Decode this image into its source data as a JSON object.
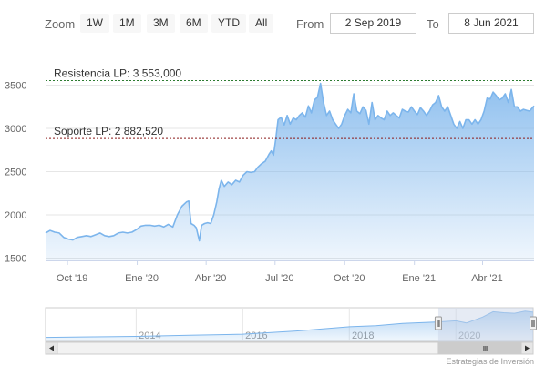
{
  "range_selector": {
    "zoom_label": "Zoom",
    "buttons": [
      "1W",
      "1M",
      "3M",
      "6M",
      "YTD",
      "All"
    ],
    "from_label": "From",
    "from_value": "2 Sep 2019",
    "to_label": "To",
    "to_value": "8 Jun 2021"
  },
  "credit": "Estrategias de Inversión",
  "colors": {
    "line": "#7cb5ec",
    "area_top": "#7cb5ec",
    "resistance": "#2e7d32",
    "support": "#8b1a1a",
    "grid": "#e6e6e6",
    "navigator_mask": "#c7d2e6"
  },
  "chart_data": {
    "type": "area",
    "title": "",
    "xlabel": "",
    "ylabel": "",
    "ylim": [
      1500,
      3500
    ],
    "y_ticks": [
      "1500",
      "2000",
      "2500",
      "3000",
      "3500"
    ],
    "x_ticks": [
      {
        "label": "Oct '19",
        "date": "2019-10-01"
      },
      {
        "label": "Ene '20",
        "date": "2020-01-01"
      },
      {
        "label": "Abr '20",
        "date": "2020-04-01"
      },
      {
        "label": "Jul '20",
        "date": "2020-07-01"
      },
      {
        "label": "Oct '20",
        "date": "2020-10-01"
      },
      {
        "label": "Ene '21",
        "date": "2021-01-01"
      },
      {
        "label": "Abr '21",
        "date": "2021-04-01"
      }
    ],
    "x_range": [
      "2019-09-02",
      "2021-06-08"
    ],
    "grid": true,
    "series": [
      {
        "points": [
          [
            "2019-09-02",
            1790
          ],
          [
            "2019-09-08",
            1820
          ],
          [
            "2019-09-14",
            1800
          ],
          [
            "2019-09-20",
            1790
          ],
          [
            "2019-09-26",
            1740
          ],
          [
            "2019-10-02",
            1720
          ],
          [
            "2019-10-08",
            1710
          ],
          [
            "2019-10-14",
            1740
          ],
          [
            "2019-10-20",
            1750
          ],
          [
            "2019-10-26",
            1760
          ],
          [
            "2019-11-01",
            1750
          ],
          [
            "2019-11-07",
            1770
          ],
          [
            "2019-11-13",
            1790
          ],
          [
            "2019-11-19",
            1760
          ],
          [
            "2019-11-25",
            1750
          ],
          [
            "2019-12-01",
            1760
          ],
          [
            "2019-12-07",
            1790
          ],
          [
            "2019-12-13",
            1800
          ],
          [
            "2019-12-19",
            1790
          ],
          [
            "2019-12-25",
            1800
          ],
          [
            "2019-12-31",
            1830
          ],
          [
            "2020-01-06",
            1870
          ],
          [
            "2020-01-12",
            1880
          ],
          [
            "2020-01-18",
            1880
          ],
          [
            "2020-01-24",
            1870
          ],
          [
            "2020-01-30",
            1880
          ],
          [
            "2020-02-05",
            1860
          ],
          [
            "2020-02-11",
            1890
          ],
          [
            "2020-02-17",
            1860
          ],
          [
            "2020-02-23",
            2000
          ],
          [
            "2020-02-29",
            2100
          ],
          [
            "2020-03-06",
            2150
          ],
          [
            "2020-03-09",
            2160
          ],
          [
            "2020-03-12",
            1900
          ],
          [
            "2020-03-16",
            1880
          ],
          [
            "2020-03-19",
            1850
          ],
          [
            "2020-03-23",
            1700
          ],
          [
            "2020-03-26",
            1880
          ],
          [
            "2020-03-30",
            1900
          ],
          [
            "2020-04-03",
            1910
          ],
          [
            "2020-04-07",
            1900
          ],
          [
            "2020-04-11",
            2000
          ],
          [
            "2020-04-15",
            2150
          ],
          [
            "2020-04-18",
            2300
          ],
          [
            "2020-04-21",
            2400
          ],
          [
            "2020-04-25",
            2330
          ],
          [
            "2020-04-30",
            2380
          ],
          [
            "2020-05-05",
            2350
          ],
          [
            "2020-05-10",
            2400
          ],
          [
            "2020-05-15",
            2380
          ],
          [
            "2020-05-20",
            2460
          ],
          [
            "2020-05-25",
            2500
          ],
          [
            "2020-05-30",
            2490
          ],
          [
            "2020-06-04",
            2500
          ],
          [
            "2020-06-08",
            2550
          ],
          [
            "2020-06-13",
            2590
          ],
          [
            "2020-06-18",
            2620
          ],
          [
            "2020-06-23",
            2700
          ],
          [
            "2020-06-26",
            2740
          ],
          [
            "2020-06-29",
            2690
          ],
          [
            "2020-07-02",
            2880
          ],
          [
            "2020-07-05",
            3100
          ],
          [
            "2020-07-09",
            3130
          ],
          [
            "2020-07-13",
            3040
          ],
          [
            "2020-07-17",
            3150
          ],
          [
            "2020-07-21",
            3050
          ],
          [
            "2020-07-25",
            3120
          ],
          [
            "2020-07-29",
            3100
          ],
          [
            "2020-08-02",
            3150
          ],
          [
            "2020-08-06",
            3180
          ],
          [
            "2020-08-10",
            3130
          ],
          [
            "2020-08-14",
            3260
          ],
          [
            "2020-08-18",
            3180
          ],
          [
            "2020-08-22",
            3330
          ],
          [
            "2020-08-26",
            3360
          ],
          [
            "2020-08-30",
            3520
          ],
          [
            "2020-09-03",
            3300
          ],
          [
            "2020-09-07",
            3150
          ],
          [
            "2020-09-11",
            3200
          ],
          [
            "2020-09-15",
            3100
          ],
          [
            "2020-09-19",
            3050
          ],
          [
            "2020-09-23",
            3000
          ],
          [
            "2020-09-27",
            3050
          ],
          [
            "2020-10-01",
            3150
          ],
          [
            "2020-10-05",
            3220
          ],
          [
            "2020-10-09",
            3180
          ],
          [
            "2020-10-13",
            3400
          ],
          [
            "2020-10-17",
            3200
          ],
          [
            "2020-10-21",
            3170
          ],
          [
            "2020-10-25",
            3250
          ],
          [
            "2020-10-29",
            3210
          ],
          [
            "2020-11-02",
            3050
          ],
          [
            "2020-11-06",
            3300
          ],
          [
            "2020-11-10",
            3100
          ],
          [
            "2020-11-14",
            3150
          ],
          [
            "2020-11-18",
            3120
          ],
          [
            "2020-11-22",
            3100
          ],
          [
            "2020-11-26",
            3200
          ],
          [
            "2020-11-30",
            3150
          ],
          [
            "2020-12-04",
            3180
          ],
          [
            "2020-12-08",
            3150
          ],
          [
            "2020-12-12",
            3120
          ],
          [
            "2020-12-16",
            3220
          ],
          [
            "2020-12-20",
            3200
          ],
          [
            "2020-12-24",
            3190
          ],
          [
            "2020-12-28",
            3250
          ],
          [
            "2021-01-01",
            3200
          ],
          [
            "2021-01-05",
            3160
          ],
          [
            "2021-01-09",
            3240
          ],
          [
            "2021-01-13",
            3200
          ],
          [
            "2021-01-17",
            3150
          ],
          [
            "2021-01-21",
            3200
          ],
          [
            "2021-01-25",
            3270
          ],
          [
            "2021-01-29",
            3300
          ],
          [
            "2021-02-02",
            3380
          ],
          [
            "2021-02-06",
            3250
          ],
          [
            "2021-02-10",
            3200
          ],
          [
            "2021-02-14",
            3250
          ],
          [
            "2021-02-18",
            3150
          ],
          [
            "2021-02-22",
            3050
          ],
          [
            "2021-02-26",
            3000
          ],
          [
            "2021-03-02",
            3080
          ],
          [
            "2021-03-06",
            3000
          ],
          [
            "2021-03-10",
            3100
          ],
          [
            "2021-03-14",
            3100
          ],
          [
            "2021-03-18",
            3050
          ],
          [
            "2021-03-22",
            3100
          ],
          [
            "2021-03-26",
            3050
          ],
          [
            "2021-03-30",
            3100
          ],
          [
            "2021-04-03",
            3200
          ],
          [
            "2021-04-07",
            3350
          ],
          [
            "2021-04-11",
            3340
          ],
          [
            "2021-04-15",
            3420
          ],
          [
            "2021-04-19",
            3380
          ],
          [
            "2021-04-23",
            3330
          ],
          [
            "2021-04-27",
            3350
          ],
          [
            "2021-05-01",
            3400
          ],
          [
            "2021-05-05",
            3300
          ],
          [
            "2021-05-09",
            3450
          ],
          [
            "2021-05-13",
            3250
          ],
          [
            "2021-05-17",
            3250
          ],
          [
            "2021-05-21",
            3200
          ],
          [
            "2021-05-25",
            3220
          ],
          [
            "2021-05-29",
            3210
          ],
          [
            "2021-06-02",
            3200
          ],
          [
            "2021-06-05",
            3230
          ],
          [
            "2021-06-08",
            3260
          ]
        ]
      }
    ],
    "annotations": [
      {
        "label": "Resistencia LP: 3 553,000",
        "value": 3553,
        "kind": "resistance"
      },
      {
        "label": "Soporte LP: 2 882,520",
        "value": 2882.52,
        "kind": "support"
      }
    ],
    "navigator": {
      "x_labels": [
        {
          "label": "2014",
          "year": 2014
        },
        {
          "label": "2016",
          "year": 2016
        },
        {
          "label": "2018",
          "year": 2018
        },
        {
          "label": "2020",
          "year": 2020
        }
      ],
      "x_range_years": [
        2012.3,
        2021.45
      ],
      "selected_years": [
        2019.67,
        2021.45
      ],
      "overview": [
        [
          2012.3,
          1200
        ],
        [
          2013,
          1250
        ],
        [
          2014,
          1300
        ],
        [
          2015,
          1400
        ],
        [
          2016,
          1500
        ],
        [
          2017,
          1800
        ],
        [
          2018,
          2200
        ],
        [
          2018.5,
          2300
        ],
        [
          2019,
          2500
        ],
        [
          2019.67,
          2650
        ],
        [
          2020,
          2750
        ],
        [
          2020.2,
          2550
        ],
        [
          2020.5,
          3100
        ],
        [
          2020.7,
          3600
        ],
        [
          2020.9,
          3500
        ],
        [
          2021.1,
          3450
        ],
        [
          2021.3,
          3650
        ],
        [
          2021.45,
          3550
        ]
      ]
    }
  }
}
